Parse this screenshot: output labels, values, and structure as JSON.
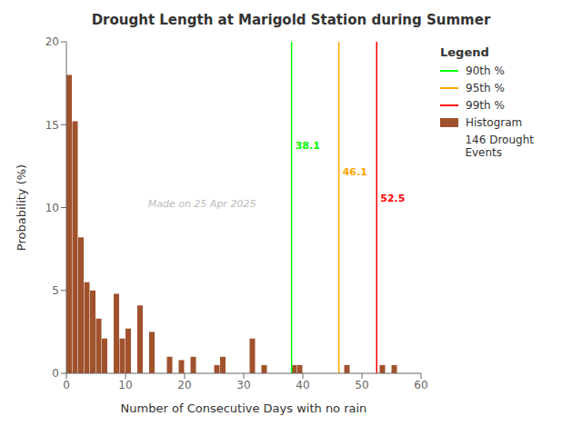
{
  "chart_data": {
    "type": "histogram",
    "title": "Drought Length at Marigold Station during Summer",
    "xlabel": "Number of Consecutive Days with no rain",
    "ylabel": "Probability (%)",
    "bins": [
      0,
      1,
      2,
      3,
      4,
      5,
      6,
      7,
      8,
      9,
      10,
      11,
      12,
      13,
      14,
      15,
      16,
      17,
      18,
      19,
      20,
      21,
      22,
      23,
      24,
      25,
      26,
      27,
      28,
      29,
      30,
      31,
      32,
      33,
      34,
      35,
      36,
      37,
      38,
      39,
      40,
      41,
      42,
      43,
      44,
      45,
      46,
      47,
      48,
      49,
      50,
      51,
      52,
      53,
      54,
      55,
      56,
      57,
      58,
      59,
      60
    ],
    "series": [
      {
        "name": "Histogram",
        "color": "#A0522D",
        "values": [
          18.0,
          15.2,
          8.2,
          5.5,
          5.0,
          3.3,
          2.1,
          0.0,
          4.8,
          2.1,
          2.7,
          0.0,
          4.1,
          0.0,
          2.5,
          0.0,
          0.0,
          1.0,
          0.0,
          0.8,
          0.0,
          1.0,
          0.0,
          0.0,
          0.0,
          0.5,
          1.0,
          0.0,
          0.0,
          0.0,
          0.0,
          2.1,
          0.0,
          0.5,
          0.0,
          0.0,
          0.0,
          0.0,
          0.5,
          0.5,
          0.0,
          0.0,
          0.0,
          0.0,
          0.0,
          0.0,
          0.0,
          0.5,
          0.0,
          0.0,
          0.0,
          0.0,
          0.0,
          0.5,
          0.0,
          0.5,
          0.0,
          0.0,
          0.0,
          0.0
        ]
      }
    ],
    "reference_lines": [
      {
        "name": "90th %",
        "value": 38.1,
        "color": "#00FF00"
      },
      {
        "name": "95th %",
        "value": 46.1,
        "color": "#FFA500"
      },
      {
        "name": "99th %",
        "value": 52.5,
        "color": "#FF0000"
      }
    ],
    "legend": "right",
    "legend_title": "Legend",
    "legend_note": "146 Drought Events",
    "annotations": [
      "Made on 25 Apr 2025"
    ],
    "xlim": [
      0,
      60
    ],
    "ylim": [
      0,
      20
    ],
    "xticks": [
      0,
      10,
      20,
      30,
      40,
      50,
      60
    ],
    "yticks": [
      0,
      5,
      10,
      15,
      20
    ],
    "grid": false
  }
}
